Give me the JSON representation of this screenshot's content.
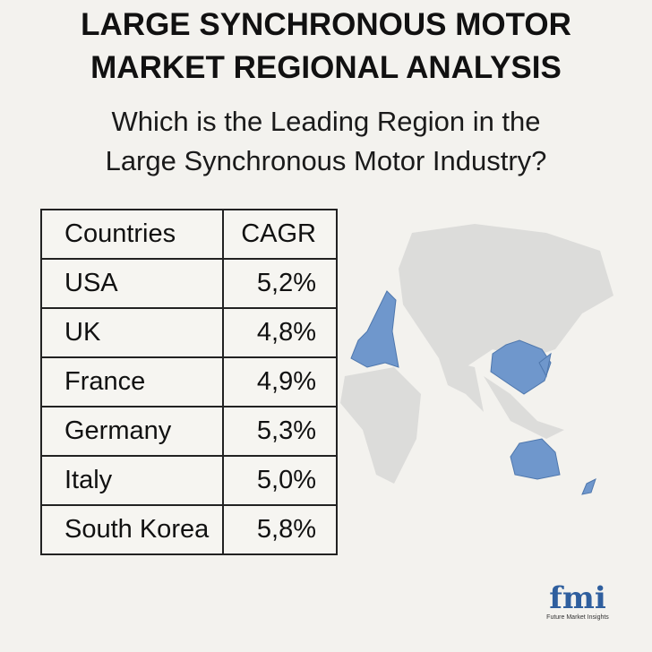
{
  "header": {
    "title": [
      "LARGE SYNCHRONOUS MOTOR",
      "MARKET REGIONAL ANALYSIS"
    ],
    "subtitle": [
      "Which is the Leading Region in the",
      "Large Synchronous Motor Industry?"
    ]
  },
  "table": {
    "columns": [
      "Countries",
      "CAGR"
    ],
    "rows": [
      [
        "USA",
        "5,2%"
      ],
      [
        "UK",
        "4,8%"
      ],
      [
        "France",
        "4,9%"
      ],
      [
        "Germany",
        "5,3%"
      ],
      [
        "Italy",
        "5,0%"
      ],
      [
        "South Korea",
        "5,8%"
      ]
    ]
  },
  "logo": {
    "mark": "fmi",
    "name": "Future Market Insights"
  }
}
